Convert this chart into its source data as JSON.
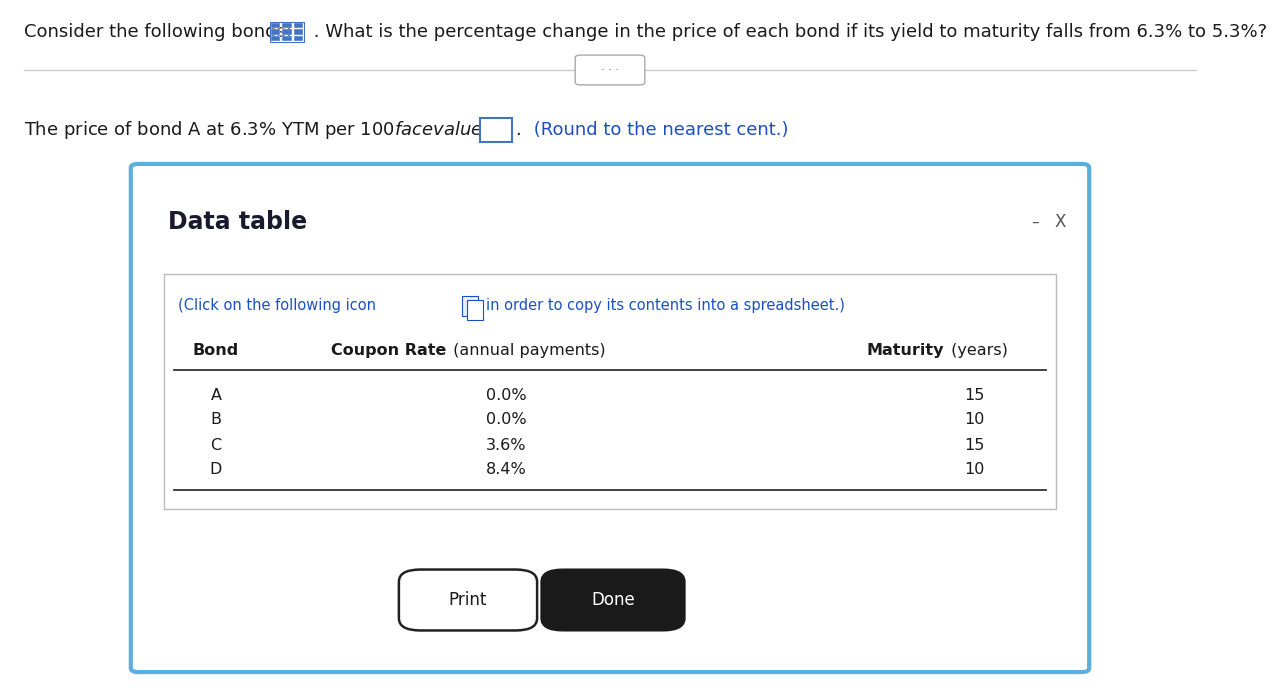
{
  "title_text": "Consider the following bonds:",
  "title_continuation": " . What is the percentage change in the price of each bond if its yield to maturity falls from 6.3% to 5.3%?",
  "question_text": "The price of bond A at 6.3% YTM per $100 face value is $",
  "question_suffix": " (Round to the nearest cent.)",
  "dialog_title": "Data table",
  "click_line": "(Click on the following icon",
  "click_line2": "in order to copy its contents into a spreadsheet.)",
  "col_bond": "Bond",
  "col_coupon_bold": "Coupon Rate",
  "col_coupon_normal": " (annual payments)",
  "col_maturity_bold": "Maturity",
  "col_maturity_normal": " (years)",
  "bonds": [
    "A",
    "B",
    "C",
    "D"
  ],
  "coupon_rates": [
    "0.0%",
    "0.0%",
    "3.6%",
    "8.4%"
  ],
  "maturities": [
    "15",
    "10",
    "15",
    "10"
  ],
  "print_btn": "Print",
  "done_btn": "Done",
  "bg_color": "#ffffff",
  "dialog_border_color": "#5baee0",
  "dialog_bg": "#ffffff",
  "blue_text_color": "#1a4fc4",
  "grid_icon_color": "#4472c4",
  "text_color": "#1a1a1a",
  "dark_color": "#1a1a1a"
}
